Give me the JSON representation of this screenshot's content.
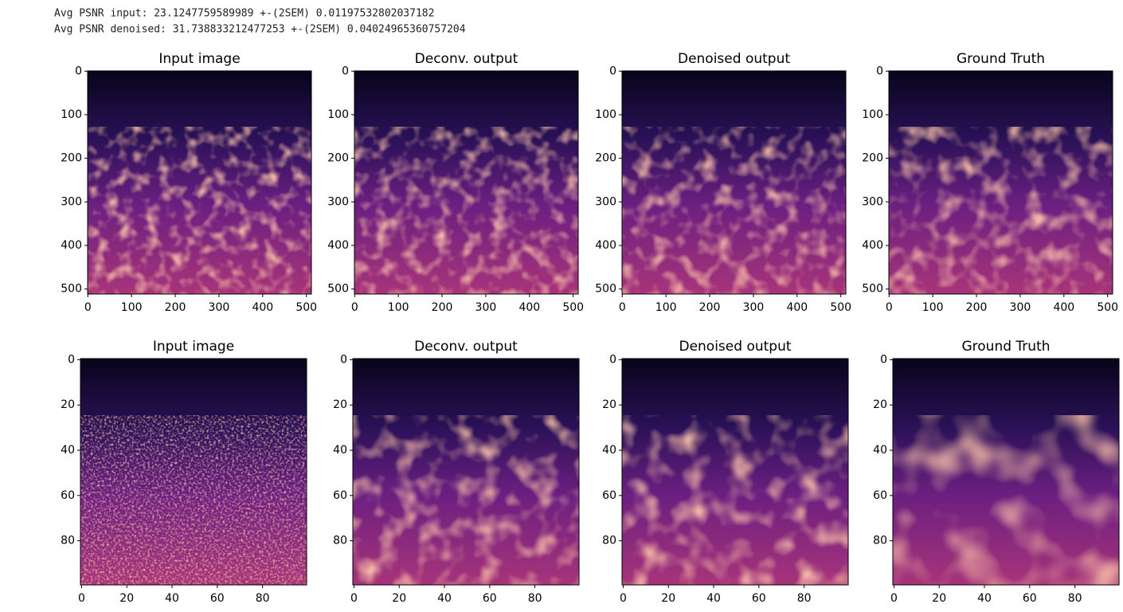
{
  "output": [
    "Avg PSNR input: 23.1247759589989 +-(2SEM) 0.01197532802037182",
    "Avg PSNR denoised: 31.738833212477253 +-(2SEM) 0.04024965360757204"
  ],
  "chart_data": [
    {
      "type": "image",
      "title": "Input image",
      "xlim": [
        -0.5,
        511.5
      ],
      "ylim": [
        511.5,
        -0.5
      ],
      "xticks": [
        0,
        100,
        200,
        300,
        400,
        500
      ],
      "yticks": [
        0,
        100,
        200,
        300,
        400,
        500
      ]
    },
    {
      "type": "image",
      "title": "Deconv. output",
      "xlim": [
        -0.5,
        511.5
      ],
      "ylim": [
        511.5,
        -0.5
      ],
      "xticks": [
        0,
        100,
        200,
        300,
        400,
        500
      ],
      "yticks": [
        0,
        100,
        200,
        300,
        400,
        500
      ]
    },
    {
      "type": "image",
      "title": "Denoised output",
      "xlim": [
        -0.5,
        511.5
      ],
      "ylim": [
        511.5,
        -0.5
      ],
      "xticks": [
        0,
        100,
        200,
        300,
        400,
        500
      ],
      "yticks": [
        0,
        100,
        200,
        300,
        400,
        500
      ]
    },
    {
      "type": "image",
      "title": "Ground Truth",
      "xlim": [
        -0.5,
        511.5
      ],
      "ylim": [
        511.5,
        -0.5
      ],
      "xticks": [
        0,
        100,
        200,
        300,
        400,
        500
      ],
      "yticks": [
        0,
        100,
        200,
        300,
        400,
        500
      ]
    },
    {
      "type": "image",
      "title": "Input image",
      "xlim": [
        -0.5,
        99.5
      ],
      "ylim": [
        99.5,
        -0.5
      ],
      "xticks": [
        0,
        20,
        40,
        60,
        80
      ],
      "yticks": [
        0,
        20,
        40,
        60,
        80
      ]
    },
    {
      "type": "image",
      "title": "Deconv. output",
      "xlim": [
        -0.5,
        99.5
      ],
      "ylim": [
        99.5,
        -0.5
      ],
      "xticks": [
        0,
        20,
        40,
        60,
        80
      ],
      "yticks": [
        0,
        20,
        40,
        60,
        80
      ]
    },
    {
      "type": "image",
      "title": "Denoised output",
      "xlim": [
        -0.5,
        99.5
      ],
      "ylim": [
        99.5,
        -0.5
      ],
      "xticks": [
        0,
        20,
        40,
        60,
        80
      ],
      "yticks": [
        0,
        20,
        40,
        60,
        80
      ]
    },
    {
      "type": "image",
      "title": "Ground Truth",
      "xlim": [
        -0.5,
        99.5
      ],
      "ylim": [
        99.5,
        -0.5
      ],
      "xticks": [
        0,
        20,
        40,
        60,
        80
      ],
      "yticks": [
        0,
        20,
        40,
        60,
        80
      ]
    }
  ]
}
